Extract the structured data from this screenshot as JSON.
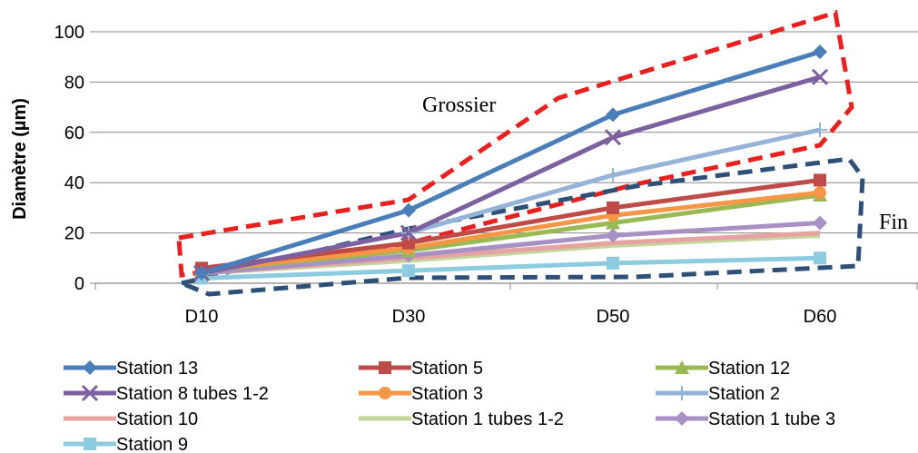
{
  "chart_data": {
    "type": "line",
    "title": "",
    "xlabel": "",
    "ylabel": "Diamètre (µm)",
    "categories": [
      "D10",
      "D30",
      "D50",
      "D60"
    ],
    "ylim": [
      0,
      100
    ],
    "yticks": [
      "0",
      "20",
      "40",
      "60",
      "80",
      "100"
    ],
    "grid": "horizontal",
    "legend_position": "bottom",
    "series": [
      {
        "name": "Station 13",
        "color": "#4a7ebb",
        "marker": "diamond",
        "values": [
          4,
          29,
          67,
          92
        ]
      },
      {
        "name": "Station 5",
        "color": "#be4b48",
        "marker": "square",
        "values": [
          6,
          16,
          30,
          41
        ]
      },
      {
        "name": "Station 12",
        "color": "#98b954",
        "marker": "triangle",
        "values": [
          5,
          13,
          24,
          35
        ]
      },
      {
        "name": "Station 8 tubes 1-2",
        "color": "#7d60a0",
        "marker": "x",
        "values": [
          4,
          20,
          58,
          82
        ]
      },
      {
        "name": "Station 3",
        "color": "#f79646",
        "marker": "circle",
        "values": [
          5,
          14,
          27,
          36
        ]
      },
      {
        "name": "Station 2",
        "color": "#95b3d7",
        "marker": "plus",
        "values": [
          4,
          20,
          43,
          61
        ]
      },
      {
        "name": "Station 10",
        "color": "#e6a3a1",
        "marker": "none",
        "values": [
          4,
          10,
          16,
          20
        ]
      },
      {
        "name": "Station 1 tubes 1-2",
        "color": "#c3d69b",
        "marker": "none",
        "values": [
          4,
          9,
          15,
          19
        ]
      },
      {
        "name": "Station 1 tube 3",
        "color": "#a791c4",
        "marker": "diamond",
        "values": [
          4,
          11,
          19,
          24
        ]
      },
      {
        "name": "Station 9",
        "color": "#8ccbe0",
        "marker": "square",
        "values": [
          2,
          5,
          8,
          10
        ]
      }
    ],
    "annotations": [
      "Grossier",
      "Fin"
    ]
  }
}
